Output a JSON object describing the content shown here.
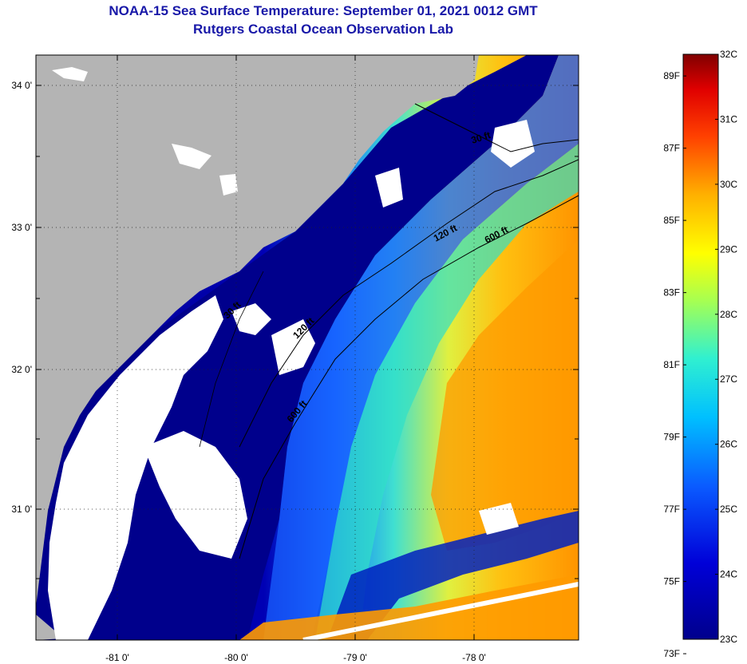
{
  "header": {
    "title_line1": "NOAA-15 Sea Surface Temperature:  September 01, 2021 0012 GMT",
    "title_line2": "Rutgers Coastal Ocean Observation Lab"
  },
  "map": {
    "lat_labels": [
      "34 0'",
      "33 0'",
      "32 0'",
      "31 0'"
    ],
    "lon_labels": [
      "-81 0'",
      "-80 0'",
      "-79 0'",
      "-78 0'"
    ],
    "contour_labels": [
      "30 ft",
      "120 ft",
      "600 ft",
      "30 ft",
      "120 ft",
      "600 ft"
    ],
    "colors": {
      "land": "#b4b4b4",
      "cloud": "#ffffff",
      "deep_blue": "#00008c"
    }
  },
  "colorbar": {
    "fahrenheit": [
      "89F",
      "87F",
      "85F",
      "83F",
      "81F",
      "79F",
      "77F",
      "75F",
      "73F"
    ],
    "celsius": [
      "32C",
      "31C",
      "30C",
      "29C",
      "28C",
      "27C",
      "26C",
      "25C",
      "24C",
      "23C"
    ],
    "range_c": [
      23,
      32
    ]
  }
}
